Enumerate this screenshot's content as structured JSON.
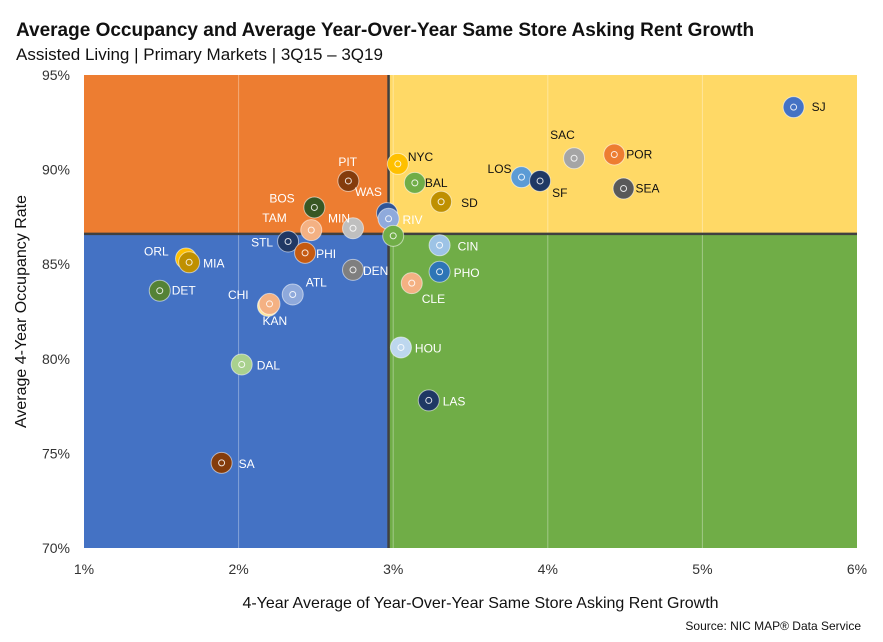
{
  "title": "Average Occupancy and Average Year-Over-Year Same Store Asking Rent Growth",
  "subtitle": "Assisted Living | Primary Markets | 3Q15 – 3Q19",
  "source": "Source: NIC MAP® Data Service",
  "chart_data": {
    "type": "scatter",
    "xlabel": "4-Year Average of Year-Over-Year Same Store Asking Rent Growth",
    "ylabel": "Average 4-Year Occupancy Rate",
    "xlim": [
      1,
      6
    ],
    "ylim": [
      70,
      95
    ],
    "x_ticks": [
      "1%",
      "2%",
      "3%",
      "4%",
      "5%",
      "6%"
    ],
    "y_ticks": [
      "70%",
      "75%",
      "80%",
      "85%",
      "90%",
      "95%"
    ],
    "x_divider": 2.97,
    "y_divider": 86.6,
    "quadrant_colors": {
      "top_left": "#ED7D31",
      "top_right": "#FFD966",
      "bottom_left": "#4472C4",
      "bottom_right": "#70AD47"
    },
    "points": [
      {
        "label": "SJ",
        "x": 5.59,
        "y": 93.3,
        "color": "#4472C4",
        "text_color": "#111111"
      },
      {
        "label": "SAC",
        "x": 4.17,
        "y": 90.6,
        "color": "#A5A5A5",
        "text_color": "#111111"
      },
      {
        "label": "POR",
        "x": 4.43,
        "y": 90.8,
        "color": "#ED7D31",
        "text_color": "#111111"
      },
      {
        "label": "SEA",
        "x": 4.49,
        "y": 89.0,
        "color": "#595959",
        "text_color": "#111111"
      },
      {
        "label": "LOS",
        "x": 3.83,
        "y": 89.6,
        "color": "#5B9BD5",
        "text_color": "#111111"
      },
      {
        "label": "SF",
        "x": 3.95,
        "y": 89.4,
        "color": "#1F3864",
        "text_color": "#111111"
      },
      {
        "label": "NYC",
        "x": 3.03,
        "y": 90.3,
        "color": "#FFC000",
        "text_color": "#111111"
      },
      {
        "label": "BAL",
        "x": 3.14,
        "y": 89.3,
        "color": "#70AD47",
        "text_color": "#111111"
      },
      {
        "label": "SD",
        "x": 3.31,
        "y": 88.3,
        "color": "#BF9000",
        "text_color": "#111111"
      },
      {
        "label": "PIT",
        "x": 2.71,
        "y": 89.4,
        "color": "#843C0C",
        "text_color": "#ffffff"
      },
      {
        "label": "WAS",
        "x": 2.96,
        "y": 87.7,
        "color": "#2F5597",
        "text_color": "#ffffff"
      },
      {
        "label": "BOS",
        "x": 2.49,
        "y": 88.0,
        "color": "#385723",
        "text_color": "#ffffff"
      },
      {
        "label": "RIV",
        "x": 2.97,
        "y": 87.4,
        "color": "#8FAADC",
        "text_color": "#ffffff"
      },
      {
        "label": "MIN",
        "x": 2.74,
        "y": 86.9,
        "color": "#BFBFBF",
        "text_color": "#ffffff"
      },
      {
        "label": "TAM",
        "x": 2.47,
        "y": 86.8,
        "color": "#F4B183",
        "text_color": "#ffffff"
      },
      {
        "label": "STL",
        "x": 2.32,
        "y": 86.2,
        "color": "#203864",
        "text_color": "#ffffff"
      },
      {
        "label": "PHI",
        "x": 2.43,
        "y": 85.6,
        "color": "#C55A11",
        "text_color": "#ffffff"
      },
      {
        "label": "ORL",
        "x": 1.66,
        "y": 85.3,
        "color": "#FFC000",
        "text_color": "#ffffff"
      },
      {
        "label": "MIA",
        "x": 1.68,
        "y": 85.1,
        "color": "#BF9000",
        "text_color": "#ffffff"
      },
      {
        "label": "DET",
        "x": 1.49,
        "y": 83.6,
        "color": "#548235",
        "text_color": "#ffffff"
      },
      {
        "label": "CHI",
        "x": 2.19,
        "y": 82.8,
        "color": "#FFE699",
        "text_color": "#ffffff"
      },
      {
        "label": "ATL",
        "x": 2.35,
        "y": 83.4,
        "color": "#8EA9DB",
        "text_color": "#ffffff"
      },
      {
        "label": "KAN",
        "x": 2.2,
        "y": 82.9,
        "color": "#F4B183",
        "text_color": "#ffffff"
      },
      {
        "label": "DEN",
        "x": 2.74,
        "y": 84.7,
        "color": "#7F7F7F",
        "text_color": "#ffffff"
      },
      {
        "label": "CIN",
        "x": 3.3,
        "y": 86.0,
        "color": "#9DC3E6",
        "text_color": "#ffffff"
      },
      {
        "label": "PHO",
        "x": 3.3,
        "y": 84.6,
        "color": "#2E75B6",
        "text_color": "#ffffff"
      },
      {
        "label": "CLE",
        "x": 3.12,
        "y": 84.0,
        "color": "#F4B183",
        "text_color": "#ffffff"
      },
      {
        "label": "DAL",
        "x": 2.02,
        "y": 79.7,
        "color": "#A9D18E",
        "text_color": "#ffffff"
      },
      {
        "label": "HOU",
        "x": 3.05,
        "y": 80.6,
        "color": "#BDD7EE",
        "text_color": "#ffffff"
      },
      {
        "label": "LAS",
        "x": 3.23,
        "y": 77.8,
        "color": "#1F3864",
        "text_color": "#ffffff"
      },
      {
        "label": "SA",
        "x": 1.89,
        "y": 74.5,
        "color": "#843C0C",
        "text_color": "#ffffff"
      },
      {
        "label": "",
        "x": 3.0,
        "y": 86.5,
        "color": "#70AD47",
        "text_color": "#ffffff"
      }
    ],
    "label_offsets": {
      "SJ": [
        18,
        4
      ],
      "SAC": [
        -24,
        -19
      ],
      "POR": [
        12,
        4
      ],
      "SEA": [
        12,
        4
      ],
      "LOS": [
        -34,
        -4
      ],
      "SF": [
        12,
        16
      ],
      "NYC": [
        10,
        -3
      ],
      "BAL": [
        10,
        4
      ],
      "SD": [
        20,
        5
      ],
      "PIT": [
        -10,
        -15
      ],
      "WAS": [
        -32,
        -17
      ],
      "BOS": [
        -45,
        -5
      ],
      "RIV": [
        14,
        5
      ],
      "MIN": [
        -25,
        -6
      ],
      "TAM": [
        -49,
        -8
      ],
      "STL": [
        -37,
        5
      ],
      "PHI": [
        11,
        5
      ],
      "ORL": [
        -42,
        -3
      ],
      "MIA": [
        14,
        5
      ],
      "DET": [
        12,
        4
      ],
      "CHI": [
        -40,
        -7
      ],
      "ATL": [
        13,
        -8
      ],
      "KAN": [
        -7,
        21
      ],
      "DEN": [
        10,
        5
      ],
      "CIN": [
        18,
        5
      ],
      "PHO": [
        14,
        5
      ],
      "CLE": [
        10,
        20
      ],
      "DAL": [
        15,
        5
      ],
      "HOU": [
        14,
        5
      ],
      "LAS": [
        14,
        5
      ],
      "SA": [
        17,
        5
      ]
    }
  }
}
